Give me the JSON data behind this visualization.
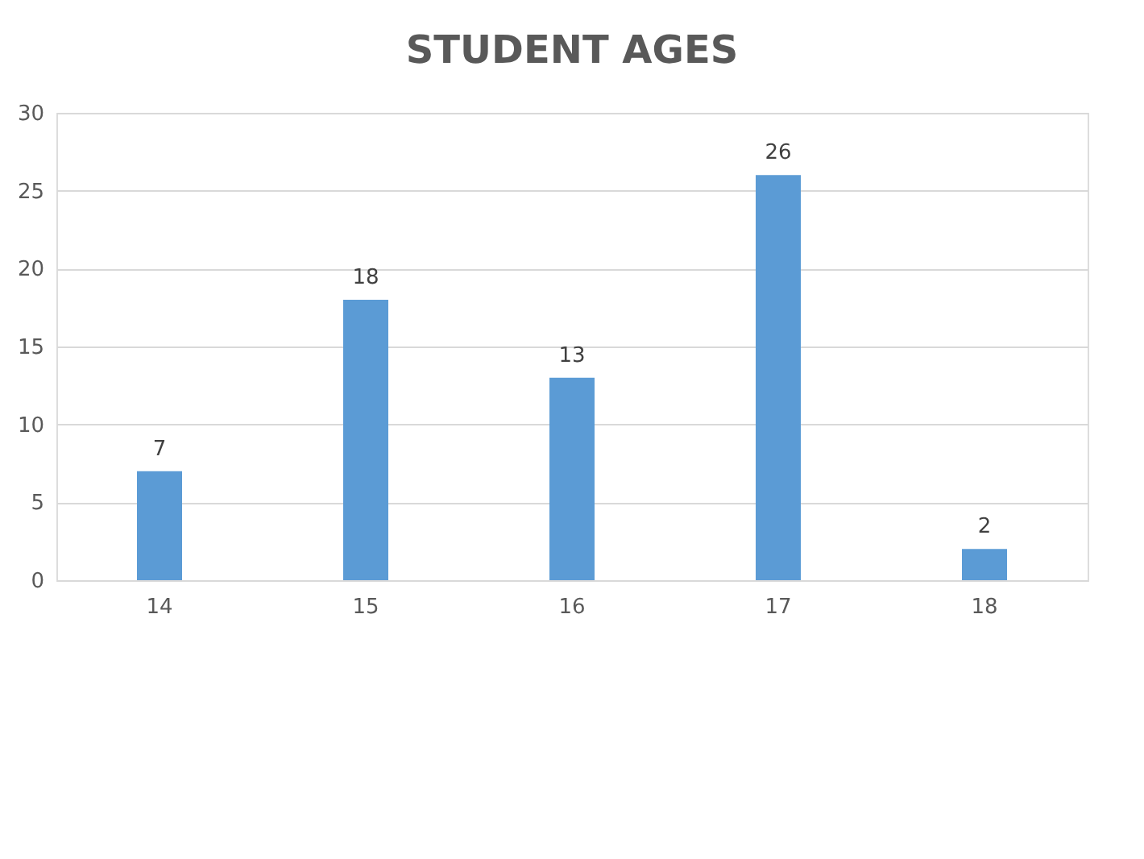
{
  "chart_data": {
    "type": "bar",
    "title": "STUDENT AGES",
    "categories": [
      "14",
      "15",
      "16",
      "17",
      "18"
    ],
    "values": [
      7,
      18,
      13,
      26,
      2
    ],
    "color": "#5b9bd5",
    "ylim": [
      0,
      30
    ],
    "yticks": [
      0,
      5,
      10,
      15,
      20,
      25,
      30
    ],
    "grid": "y",
    "data_labels": true
  }
}
